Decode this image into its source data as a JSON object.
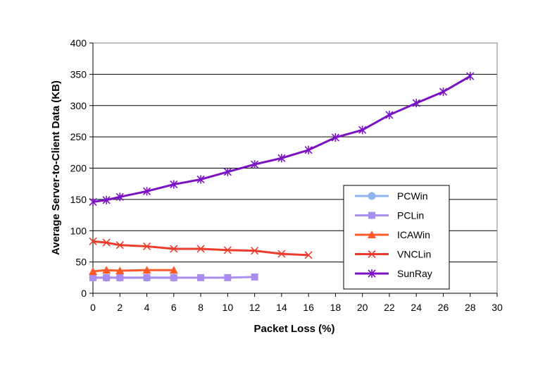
{
  "chart_data": {
    "type": "line",
    "title": "",
    "xlabel": "Packet Loss (%)",
    "ylabel": "Average Server-to-Client Data (KB)",
    "xlim": [
      0,
      30
    ],
    "ylim": [
      0,
      400
    ],
    "xticks": [
      0,
      2,
      4,
      6,
      8,
      10,
      12,
      14,
      16,
      18,
      20,
      22,
      24,
      26,
      28,
      30
    ],
    "yticks": [
      0,
      50,
      100,
      150,
      200,
      250,
      300,
      350,
      400
    ],
    "grid": "horizontal",
    "legend_position": "right",
    "series": [
      {
        "name": "PCWin",
        "color": "#8fb4f0",
        "marker": "circle",
        "x": [
          0,
          1,
          2,
          4,
          6
        ],
        "values": [
          25,
          25,
          25,
          25,
          25
        ]
      },
      {
        "name": "PCLin",
        "color": "#aa8df0",
        "marker": "square",
        "x": [
          0,
          1,
          2,
          4,
          6,
          8,
          10,
          12
        ],
        "values": [
          25,
          25,
          25,
          25,
          25,
          25,
          25,
          26
        ]
      },
      {
        "name": "ICAWin",
        "color": "#ff5a2a",
        "marker": "triangle",
        "x": [
          0,
          1,
          2,
          4,
          6
        ],
        "values": [
          35,
          37,
          36,
          37,
          37
        ]
      },
      {
        "name": "VNCLin",
        "color": "#ee3b2b",
        "marker": "x",
        "x": [
          0,
          1,
          2,
          4,
          6,
          8,
          10,
          12,
          14,
          16
        ],
        "values": [
          83,
          81,
          77,
          75,
          71,
          71,
          69,
          68,
          63,
          61
        ]
      },
      {
        "name": "SunRay",
        "color": "#7a12c4",
        "marker": "asterisk",
        "x": [
          0,
          1,
          2,
          4,
          6,
          8,
          10,
          12,
          14,
          16,
          18,
          20,
          22,
          24,
          26,
          28
        ],
        "values": [
          146,
          149,
          154,
          163,
          174,
          182,
          194,
          206,
          216,
          229,
          249,
          261,
          285,
          304,
          322,
          347
        ]
      }
    ]
  }
}
